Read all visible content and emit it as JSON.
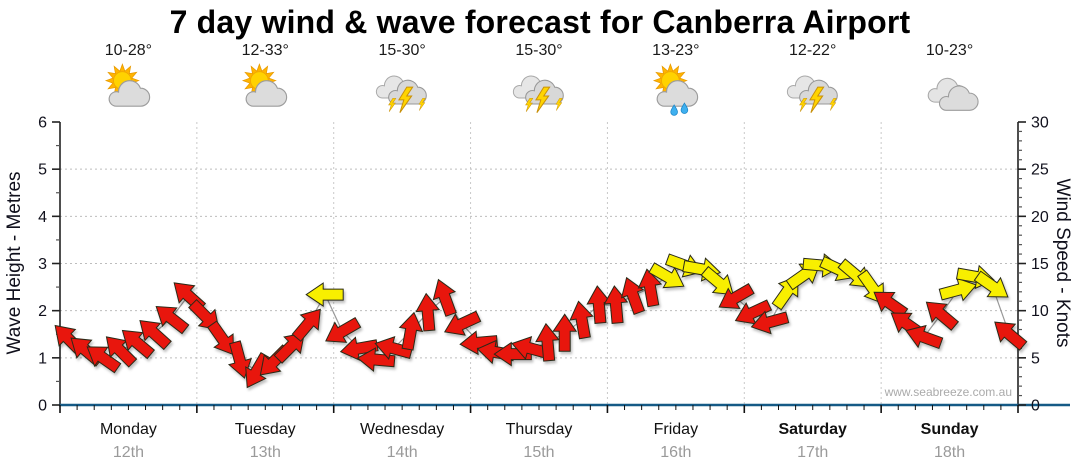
{
  "title": "7 day wind & wave forecast for Canberra Airport",
  "watermark": "www.seabreeze.com.au",
  "colors": {
    "arrow_red": "#e8120e",
    "arrow_yellow": "#f8ef00",
    "x_axis_line": "#155a86",
    "grid": "#bdbdbd",
    "day_grid": "#c9c9c9",
    "connector": "#999999",
    "date_text": "#9a9a9a",
    "text": "#10101c"
  },
  "days": [
    {
      "name": "Monday",
      "date": "12th",
      "temp_range": "10-28°",
      "icon": "sun-cloud-icon",
      "weekend": false
    },
    {
      "name": "Tuesday",
      "date": "13th",
      "temp_range": "12-33°",
      "icon": "sun-cloud-icon",
      "weekend": false
    },
    {
      "name": "Wednesday",
      "date": "14th",
      "temp_range": "15-30°",
      "icon": "storm-icon",
      "weekend": false
    },
    {
      "name": "Thursday",
      "date": "15th",
      "temp_range": "15-30°",
      "icon": "storm-icon",
      "weekend": false
    },
    {
      "name": "Friday",
      "date": "16th",
      "temp_range": "13-23°",
      "icon": "sun-rain-icon",
      "weekend": false
    },
    {
      "name": "Saturday",
      "date": "17th",
      "temp_range": "12-22°",
      "icon": "storm-icon",
      "weekend": true
    },
    {
      "name": "Sunday",
      "date": "18th",
      "temp_range": "10-23°",
      "icon": "clouds-icon",
      "weekend": true
    }
  ],
  "chart_data": {
    "type": "line",
    "title": "7 day wind & wave forecast for Canberra Airport",
    "left_axis": {
      "label": "Wave Height - Metres",
      "min": 0,
      "max": 6,
      "ticks": [
        0,
        1,
        2,
        3,
        4,
        5,
        6
      ],
      "minor_step": 0.5
    },
    "right_axis": {
      "label": "Wind Speed - Knots",
      "min": 0,
      "max": 30,
      "ticks": [
        0,
        5,
        10,
        15,
        20,
        25,
        30
      ],
      "minor_step": 1
    },
    "x_axis": {
      "categories": [
        "Monday",
        "Tuesday",
        "Wednesday",
        "Thursday",
        "Friday",
        "Saturday",
        "Sunday"
      ],
      "points_per_day": 8,
      "grid": "day-boundaries"
    },
    "legend": "none",
    "series": [
      {
        "name": "wind-speed-arrows",
        "points": [
          {
            "knots": 7.0,
            "dir_deg": -135,
            "color": "red"
          },
          {
            "knots": 5.8,
            "dir_deg": -140,
            "color": "red"
          },
          {
            "knots": 5.0,
            "dir_deg": -145,
            "color": "red"
          },
          {
            "knots": 5.8,
            "dir_deg": -135,
            "color": "red"
          },
          {
            "knots": 6.6,
            "dir_deg": -140,
            "color": "red"
          },
          {
            "knots": 7.6,
            "dir_deg": -138,
            "color": "red"
          },
          {
            "knots": 9.2,
            "dir_deg": -142,
            "color": "red"
          },
          {
            "knots": 11.6,
            "dir_deg": -138,
            "color": "red"
          },
          {
            "knots": 9.4,
            "dir_deg": 45,
            "color": "red"
          },
          {
            "knots": 7.0,
            "dir_deg": 55,
            "color": "red"
          },
          {
            "knots": 4.8,
            "dir_deg": 75,
            "color": "red"
          },
          {
            "knots": 3.6,
            "dir_deg": 120,
            "color": "red"
          },
          {
            "knots": 4.6,
            "dir_deg": 135,
            "color": "red"
          },
          {
            "knots": 6.2,
            "dir_deg": -45,
            "color": "red"
          },
          {
            "knots": 8.6,
            "dir_deg": -50,
            "color": "red"
          },
          {
            "knots": 11.7,
            "dir_deg": 180,
            "color": "yellow"
          },
          {
            "knots": 7.8,
            "dir_deg": 150,
            "color": "red"
          },
          {
            "knots": 6.0,
            "dir_deg": 170,
            "color": "red"
          },
          {
            "knots": 4.8,
            "dir_deg": 185,
            "color": "red"
          },
          {
            "knots": 6.0,
            "dir_deg": 195,
            "color": "red"
          },
          {
            "knots": 7.8,
            "dir_deg": -80,
            "color": "red"
          },
          {
            "knots": 9.8,
            "dir_deg": -95,
            "color": "red"
          },
          {
            "knots": 11.4,
            "dir_deg": -110,
            "color": "red"
          },
          {
            "knots": 8.6,
            "dir_deg": 155,
            "color": "red"
          },
          {
            "knots": 6.6,
            "dir_deg": 175,
            "color": "red"
          },
          {
            "knots": 5.6,
            "dir_deg": 190,
            "color": "red"
          },
          {
            "knots": 5.4,
            "dir_deg": 180,
            "color": "red"
          },
          {
            "knots": 6.0,
            "dir_deg": 195,
            "color": "red"
          },
          {
            "knots": 6.6,
            "dir_deg": -95,
            "color": "red"
          },
          {
            "knots": 7.6,
            "dir_deg": -90,
            "color": "red"
          },
          {
            "knots": 9.0,
            "dir_deg": -100,
            "color": "red"
          },
          {
            "knots": 10.6,
            "dir_deg": -95,
            "color": "red"
          },
          {
            "knots": 10.6,
            "dir_deg": -95,
            "color": "red"
          },
          {
            "knots": 11.6,
            "dir_deg": -110,
            "color": "red"
          },
          {
            "knots": 12.4,
            "dir_deg": -100,
            "color": "red"
          },
          {
            "knots": 13.6,
            "dir_deg": 30,
            "color": "yellow"
          },
          {
            "knots": 14.8,
            "dir_deg": 20,
            "color": "yellow"
          },
          {
            "knots": 14.4,
            "dir_deg": 10,
            "color": "yellow"
          },
          {
            "knots": 13.0,
            "dir_deg": 40,
            "color": "yellow"
          },
          {
            "knots": 11.4,
            "dir_deg": 150,
            "color": "red"
          },
          {
            "knots": 9.8,
            "dir_deg": 155,
            "color": "red"
          },
          {
            "knots": 8.8,
            "dir_deg": 165,
            "color": "red"
          },
          {
            "knots": 12.0,
            "dir_deg": -55,
            "color": "yellow"
          },
          {
            "knots": 13.8,
            "dir_deg": -35,
            "color": "yellow"
          },
          {
            "knots": 14.8,
            "dir_deg": 5,
            "color": "yellow"
          },
          {
            "knots": 14.4,
            "dir_deg": 25,
            "color": "yellow"
          },
          {
            "knots": 13.8,
            "dir_deg": 40,
            "color": "yellow"
          },
          {
            "knots": 12.4,
            "dir_deg": 55,
            "color": "yellow"
          },
          {
            "knots": 10.8,
            "dir_deg": -145,
            "color": "red"
          },
          {
            "knots": 8.6,
            "dir_deg": 215,
            "color": "red"
          },
          {
            "knots": 7.2,
            "dir_deg": 200,
            "color": "red"
          },
          {
            "knots": 9.6,
            "dir_deg": -140,
            "color": "red"
          },
          {
            "knots": 12.2,
            "dir_deg": -15,
            "color": "yellow"
          },
          {
            "knots": 13.6,
            "dir_deg": 10,
            "color": "yellow"
          },
          {
            "knots": 12.6,
            "dir_deg": 35,
            "color": "yellow"
          },
          {
            "knots": 7.5,
            "dir_deg": -140,
            "color": "red"
          }
        ]
      }
    ]
  }
}
